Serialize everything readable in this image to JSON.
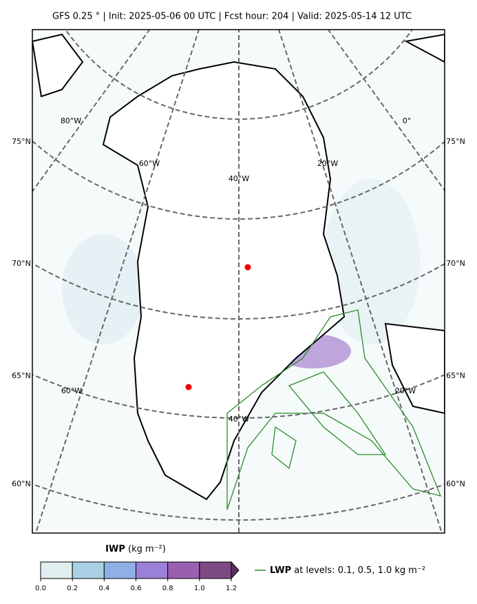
{
  "title": "GFS 0.25 °  |  Init: 2025-05-06 00 UTC  |  Fcst hour: 204  |  Valid: 2025-05-14 12 UTC",
  "lat_labels": [
    "75°N",
    "70°N",
    "65°N",
    "60°N"
  ],
  "lon_labels": [
    "80°W",
    "0°",
    "60°W",
    "20°W",
    "40°W",
    "60°W",
    "20°W",
    "40°W"
  ],
  "colorbar": {
    "name": "IWP",
    "unit": "(kg m⁻²)",
    "lim": [
      0,
      1.2
    ],
    "ticks": [
      {
        "value": 0,
        "label": "0.0"
      },
      0.2,
      0.4,
      0.6,
      0.8,
      {
        "value": 1,
        "label": "1.0"
      },
      1.2
    ],
    "colors": [
      "#e0eef0",
      "#a9d0e4",
      "#8fb0e6",
      "#9a80d8",
      "#9a5fb0",
      "#7d4a85",
      "#5e3060"
    ]
  },
  "legend": {
    "name": "LWP",
    "text": "at levels: 0.1, 0.5, 1.0  kg m⁻²",
    "color": "#2a8a2a"
  }
}
